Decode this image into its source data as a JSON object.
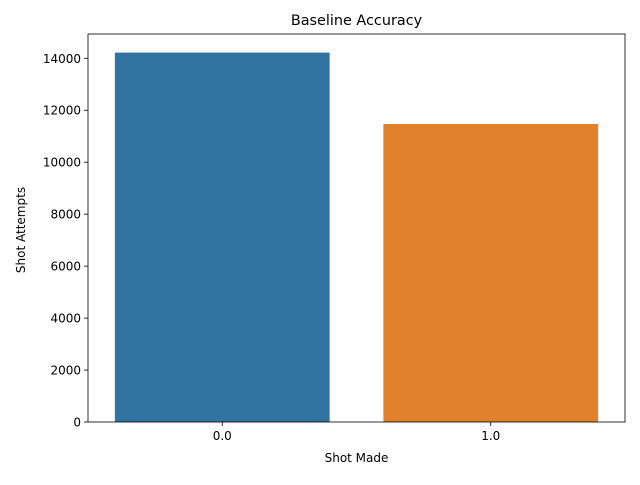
{
  "chart_data": {
    "type": "bar",
    "title": "Baseline Accuracy",
    "xlabel": "Shot Made",
    "ylabel": "Shot Attempts",
    "categories": [
      "0.0",
      "1.0"
    ],
    "values": [
      14220,
      11470
    ],
    "colors": [
      "#3274a1",
      "#e1812c"
    ],
    "ylim": [
      0,
      14935
    ],
    "yticks": [
      0,
      2000,
      4000,
      6000,
      8000,
      10000,
      12000,
      14000
    ],
    "ytick_labels": [
      "0",
      "2000",
      "4000",
      "6000",
      "8000",
      "10000",
      "12000",
      "14000"
    ],
    "grid": false,
    "legend": "none"
  }
}
